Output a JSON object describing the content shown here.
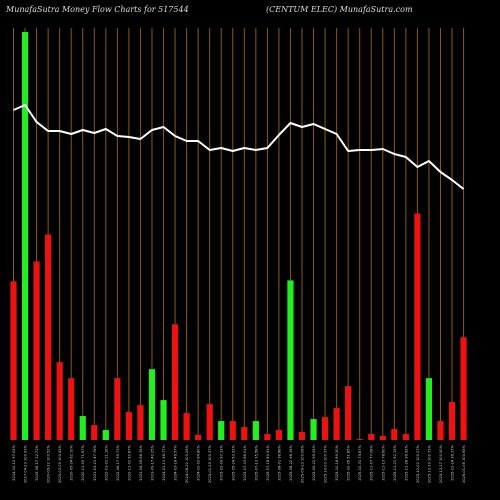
{
  "header": {
    "left": "MunafaSutra  Money Flow  Charts for 517544",
    "right": "(CENTUM ELEC) MunafaSutra.com"
  },
  "chart_data": {
    "type": "bar",
    "title": "MunafaSutra  Money Flow  Charts for 517544",
    "subtitle": "(CENTUM ELEC) MunafaSutra.com",
    "grid": true,
    "colors": {
      "up": "#22ee22",
      "down": "#ee1111",
      "line": "#ffffff",
      "grid": "#8a5a14",
      "background": "#000000"
    },
    "categories": [
      "2014-10-12 97.05%",
      "2017-04-23 100.93%",
      "2019-08-17 12.73%",
      "2020-06-22 100.52%",
      "2020-03-09 100.43%",
      "2020-05-24 62.10%",
      "2020-11-09 71.67%",
      "2021-03-21 47.78%",
      "2022-01-02 21.16%",
      "2022-06-17 99.73%",
      "2022-11-02 50.87%",
      "2023-04-05 68.35%",
      "2023-09-17 42.05%",
      "2024-01-11 98.77%",
      "2024-03-18 49.57%",
      "2024-08-22 100.25%",
      "2024-10-02 84.80%",
      "2025-01-29 100.37%",
      "2025-03-09 97.33%",
      "2025-05-24 53.92%",
      "2025-07-03 86.01%",
      "2025-07-13 95.58%",
      "2025-07-18 80.91%",
      "2025-08-01 98.88%",
      "2025-08-22 98.35%",
      "2025-09-13 100.08%",
      "2025-09-22 99.25%",
      "2025-10-03 100.37%",
      "2025-10-16 89.30%",
      "2025-10-26 51.85%",
      "2025-10-31 75.87%",
      "2025-11-07 77.08%",
      "2025-11-13 78.60%",
      "2025-11-21 92.19%",
      "2025-11-28 96.92%",
      "2025-12-02 100.27%",
      "2025-12-10 100.73%",
      "2025-12-17 100.50%",
      "2025-12-24 36.17%",
      "2026-01-06 100.65%"
    ],
    "volumes": [
      159,
      409,
      179,
      206,
      78,
      62,
      24,
      15,
      10,
      62,
      28,
      35,
      71,
      40,
      116,
      27,
      5,
      36,
      19,
      19,
      13,
      19,
      6,
      10,
      160,
      8,
      21,
      23,
      32,
      54,
      1,
      6,
      4,
      11,
      6,
      227,
      62,
      19,
      38,
      103
    ],
    "directions": [
      "down",
      "up",
      "down",
      "down",
      "down",
      "down",
      "up",
      "down",
      "up",
      "down",
      "down",
      "down",
      "up",
      "up",
      "down",
      "down",
      "down",
      "down",
      "up",
      "down",
      "down",
      "up",
      "down",
      "down",
      "up",
      "down",
      "up",
      "down",
      "down",
      "down",
      "down",
      "down",
      "down",
      "down",
      "down",
      "down",
      "up",
      "down",
      "down",
      "down"
    ],
    "line": [
      330,
      335,
      318,
      309,
      309,
      306,
      310,
      307,
      311,
      304,
      303,
      301,
      310,
      313,
      304,
      299,
      299,
      290,
      292,
      289,
      292,
      290,
      292,
      305,
      317,
      313,
      316,
      311,
      306,
      289,
      290,
      290,
      291,
      286,
      283,
      273,
      279,
      268,
      260,
      251
    ]
  }
}
